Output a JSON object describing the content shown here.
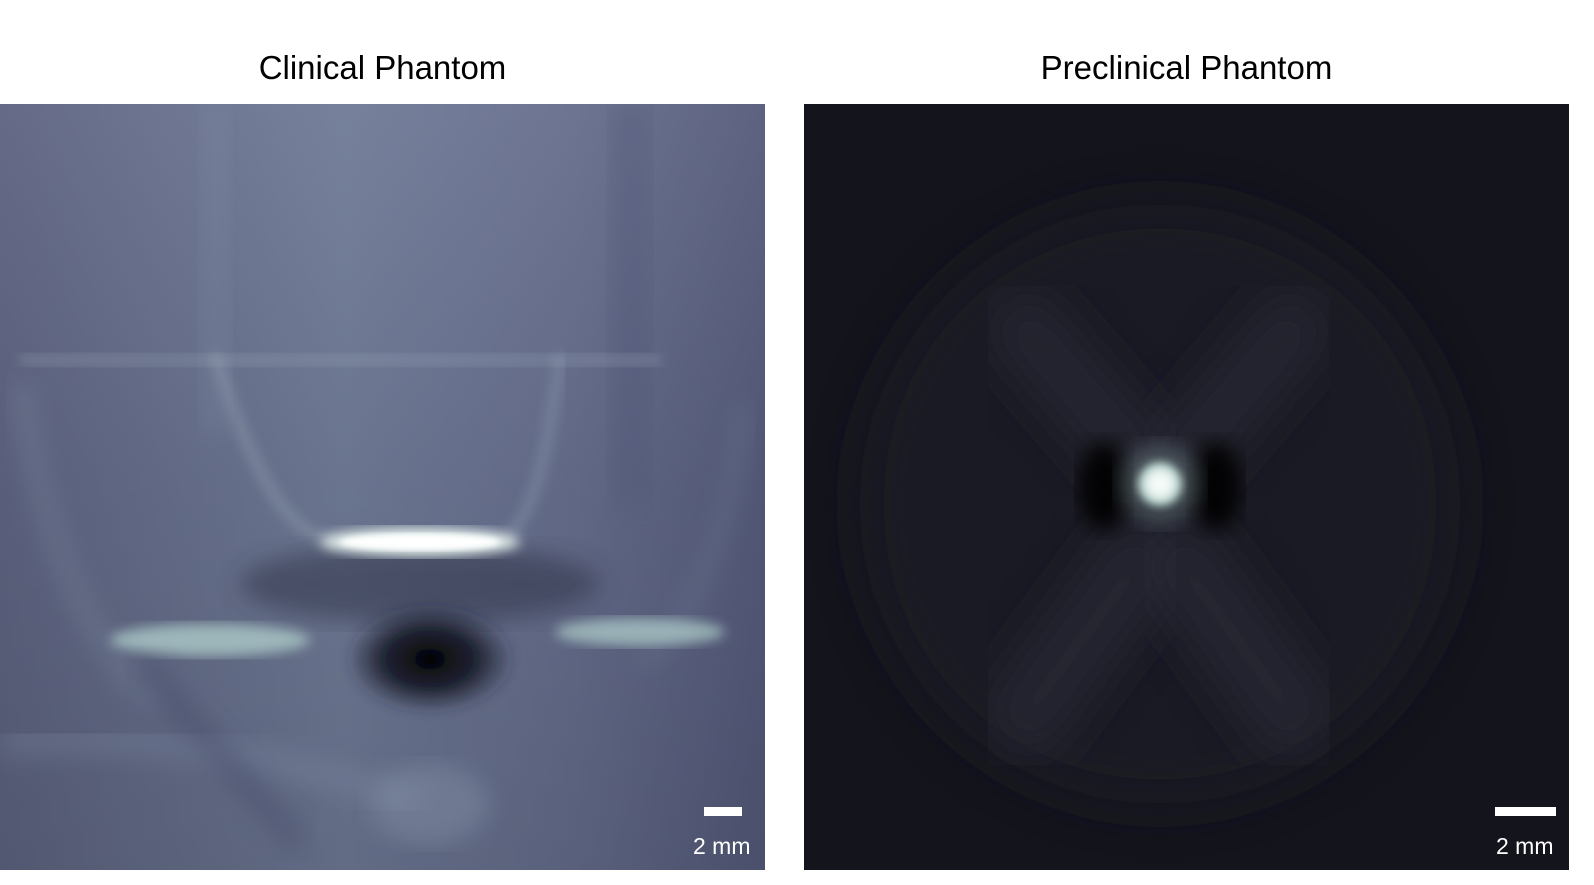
{
  "panels": {
    "left": {
      "title": "Clinical Phantom",
      "scale_bar_label": "2 mm"
    },
    "right": {
      "title": "Preclinical Phantom",
      "scale_bar_label": "2 mm"
    }
  },
  "colors": {
    "left_background": "#6b7390",
    "right_background": "#14141c",
    "highlight": "#e8f4f0",
    "scale_bar": "#ffffff"
  }
}
